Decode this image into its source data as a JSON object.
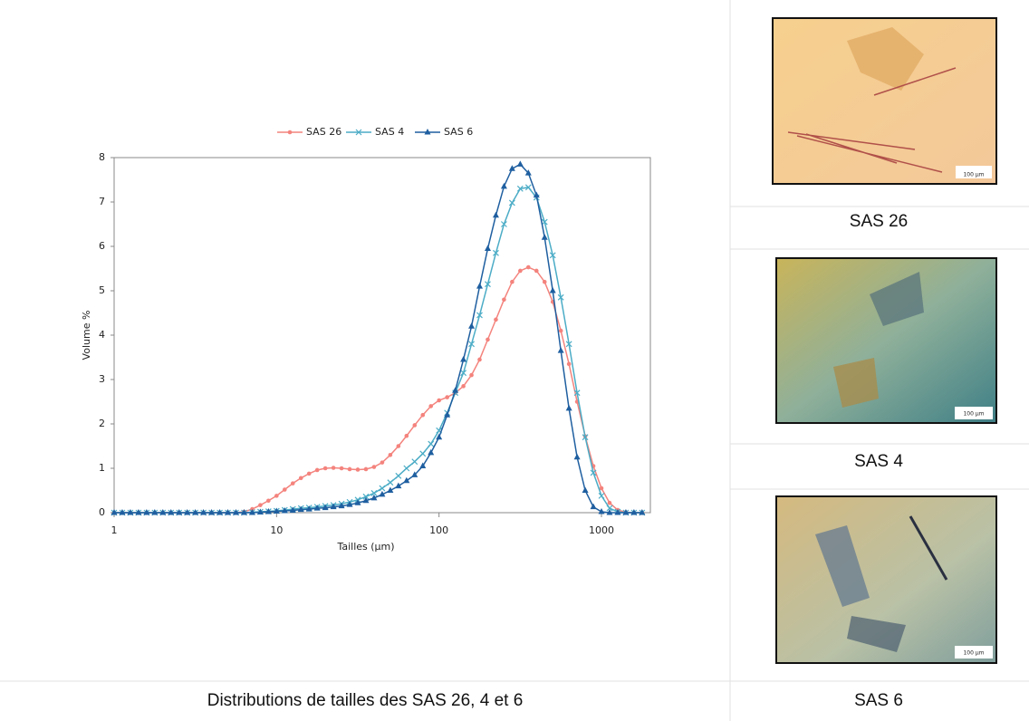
{
  "chart_data": {
    "type": "line",
    "log_x": true,
    "xlabel": "Tailles (µm)",
    "ylabel": "Volume %",
    "legend": "top",
    "x": [
      1,
      1.122,
      1.259,
      1.413,
      1.585,
      1.778,
      1.995,
      2.239,
      2.512,
      2.818,
      3.162,
      3.548,
      3.981,
      4.467,
      5.012,
      5.623,
      6.31,
      7.079,
      7.943,
      8.913,
      10,
      11.22,
      12.59,
      14.13,
      15.85,
      17.78,
      19.95,
      22.39,
      25.12,
      28.18,
      31.62,
      35.48,
      39.81,
      44.67,
      50.12,
      56.23,
      63.1,
      70.79,
      79.43,
      89.13,
      100,
      112.2,
      125.9,
      141.3,
      158.5,
      177.8,
      199.5,
      223.9,
      251.2,
      281.8,
      316.2,
      354.8,
      398.1,
      446.7,
      501.2,
      562.3,
      631,
      707.9,
      794.3,
      891.3,
      1000,
      1122,
      1259,
      1413,
      1585,
      1778
    ],
    "series": [
      {
        "name": "SAS 26",
        "color": "#f4837d",
        "marker": "circle",
        "values": [
          0,
          0,
          0,
          0,
          0,
          0,
          0,
          0,
          0,
          0,
          0,
          0,
          0,
          0,
          0,
          0,
          0.02,
          0.08,
          0.17,
          0.27,
          0.38,
          0.52,
          0.66,
          0.78,
          0.88,
          0.96,
          1.0,
          1.01,
          1.0,
          0.98,
          0.97,
          0.98,
          1.03,
          1.13,
          1.3,
          1.5,
          1.73,
          1.97,
          2.2,
          2.4,
          2.53,
          2.6,
          2.7,
          2.85,
          3.1,
          3.45,
          3.9,
          4.35,
          4.8,
          5.2,
          5.45,
          5.53,
          5.45,
          5.2,
          4.75,
          4.1,
          3.35,
          2.5,
          1.72,
          1.05,
          0.55,
          0.22,
          0.06,
          0.01,
          0,
          0
        ]
      },
      {
        "name": "SAS 4",
        "color": "#4bacc6",
        "marker": "x",
        "values": [
          0,
          0,
          0,
          0,
          0,
          0,
          0,
          0,
          0,
          0,
          0,
          0,
          0,
          0,
          0,
          0,
          0,
          0.01,
          0.02,
          0.03,
          0.04,
          0.06,
          0.08,
          0.1,
          0.11,
          0.13,
          0.15,
          0.17,
          0.2,
          0.24,
          0.29,
          0.36,
          0.44,
          0.55,
          0.68,
          0.83,
          1.0,
          1.15,
          1.33,
          1.55,
          1.85,
          2.25,
          2.7,
          3.15,
          3.8,
          4.45,
          5.15,
          5.85,
          6.5,
          6.98,
          7.3,
          7.33,
          7.1,
          6.55,
          5.8,
          4.85,
          3.8,
          2.7,
          1.7,
          0.9,
          0.38,
          0.1,
          0.02,
          0,
          0,
          0
        ]
      },
      {
        "name": "SAS 6",
        "color": "#1f5fa0",
        "marker": "triangle",
        "values": [
          0,
          0,
          0,
          0,
          0,
          0,
          0,
          0,
          0,
          0,
          0,
          0,
          0,
          0,
          0,
          0,
          0,
          0,
          0.01,
          0.02,
          0.03,
          0.04,
          0.05,
          0.07,
          0.08,
          0.1,
          0.11,
          0.13,
          0.15,
          0.18,
          0.22,
          0.27,
          0.33,
          0.41,
          0.5,
          0.6,
          0.72,
          0.85,
          1.05,
          1.35,
          1.7,
          2.2,
          2.75,
          3.45,
          4.2,
          5.1,
          5.95,
          6.7,
          7.35,
          7.75,
          7.85,
          7.65,
          7.15,
          6.2,
          5.0,
          3.65,
          2.35,
          1.25,
          0.5,
          0.13,
          0.02,
          0,
          0,
          0,
          0,
          0
        ]
      }
    ],
    "xlim": [
      1,
      2000
    ],
    "xticks": [
      1,
      10,
      100,
      1000
    ],
    "ylim": [
      0,
      8
    ],
    "yticks": [
      0,
      1,
      2,
      3,
      4,
      5,
      6,
      7,
      8
    ]
  },
  "caption": "Distributions de tailles des SAS 26, 4 et 6",
  "panels": [
    {
      "caption": "SAS 26",
      "scale": "100 µm"
    },
    {
      "caption": "SAS 4",
      "scale": "100 µm"
    },
    {
      "caption": "SAS 6",
      "scale": "100 µm"
    }
  ]
}
